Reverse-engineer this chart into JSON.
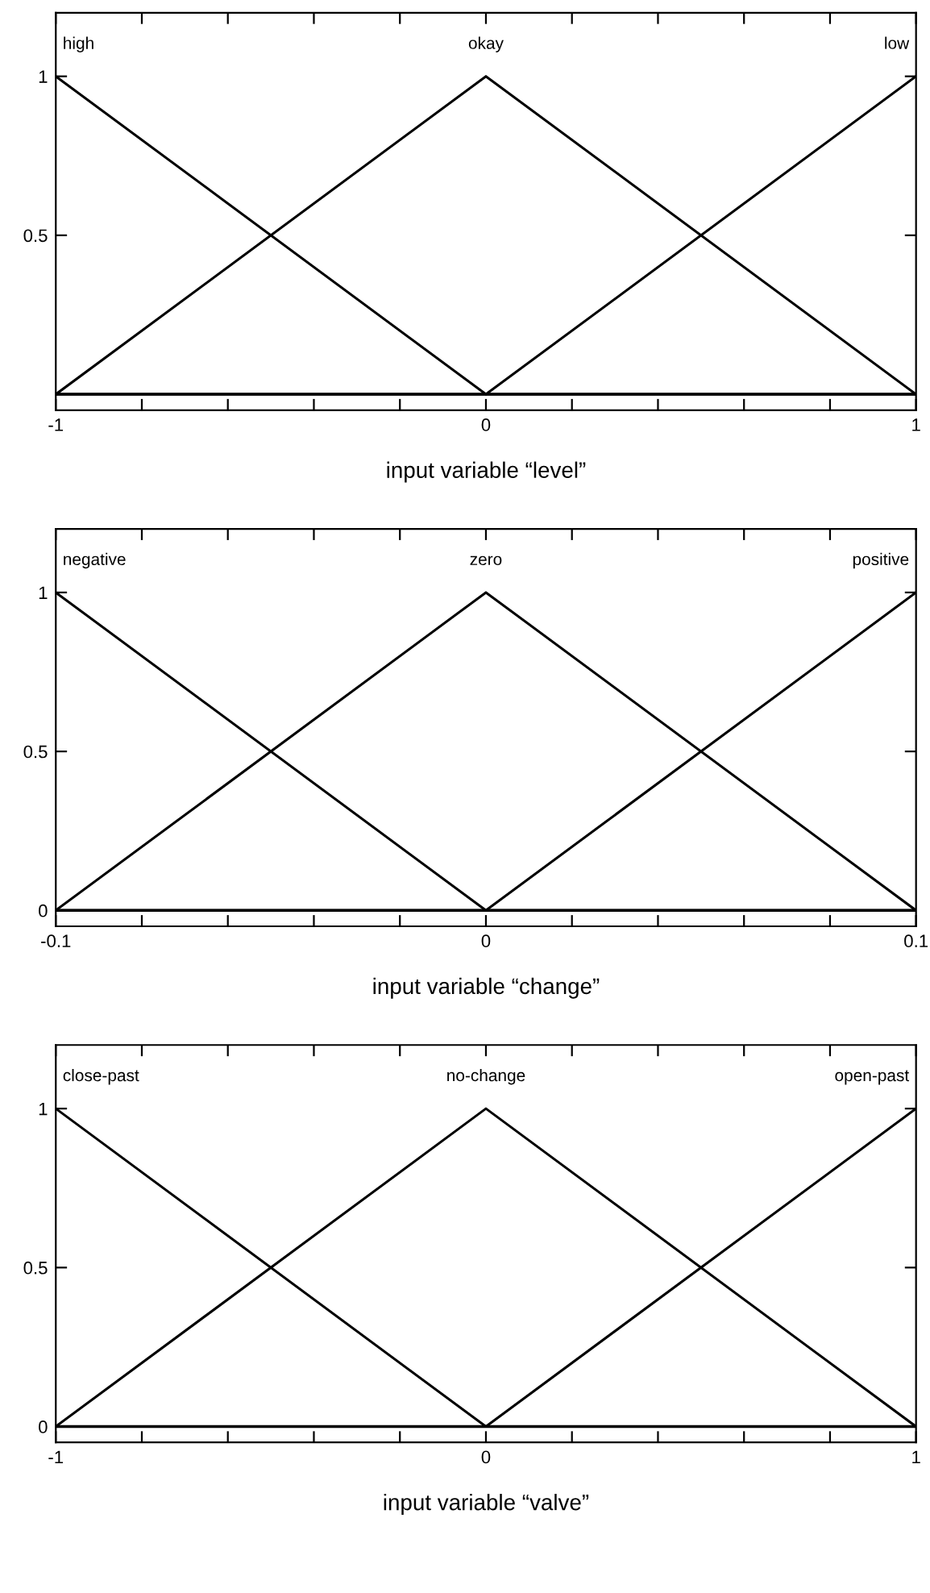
{
  "chart_data": [
    {
      "type": "line",
      "xlabel": "input variable “level”",
      "x": [
        -1,
        0,
        1
      ],
      "series": [
        {
          "name": "high",
          "color": "#000000",
          "values": [
            1,
            0,
            0
          ]
        },
        {
          "name": "okay",
          "color": "#000000",
          "values": [
            0,
            1,
            0
          ]
        },
        {
          "name": "low",
          "color": "#000000",
          "values": [
            0,
            0,
            1
          ]
        }
      ],
      "xlim": [
        -1,
        1
      ],
      "ylim": [
        -0.05,
        1.2
      ],
      "xticks": [
        -1,
        {
          "value": -0.8,
          "label": null
        },
        {
          "value": -0.6,
          "label": null
        },
        {
          "value": -0.4,
          "label": null
        },
        {
          "value": -0.2,
          "label": null
        },
        0,
        {
          "value": 0.2,
          "label": null
        },
        {
          "value": 0.4,
          "label": null
        },
        {
          "value": 0.6,
          "label": null
        },
        {
          "value": 0.8,
          "label": null
        },
        1
      ],
      "yticks": [
        0.5,
        1
      ],
      "ref_lines": [
        {
          "axis": "y",
          "value": 0
        }
      ],
      "grid": false,
      "legend": "top",
      "marker": "none",
      "line_style": "solid"
    },
    {
      "type": "line",
      "xlabel": "input variable “change”",
      "x": [
        -0.1,
        0,
        0.1
      ],
      "series": [
        {
          "name": "negative",
          "color": "#000000",
          "values": [
            1,
            0,
            0
          ]
        },
        {
          "name": "zero",
          "color": "#000000",
          "values": [
            0,
            1,
            0
          ]
        },
        {
          "name": "positive",
          "color": "#000000",
          "values": [
            0,
            0,
            1
          ]
        }
      ],
      "xlim": [
        -0.1,
        0.1
      ],
      "ylim": [
        -0.05,
        1.2
      ],
      "xticks": [
        -0.1,
        {
          "value": -0.08,
          "label": null
        },
        {
          "value": -0.06,
          "label": null
        },
        {
          "value": -0.04,
          "label": null
        },
        {
          "value": -0.02,
          "label": null
        },
        0,
        {
          "value": 0.02,
          "label": null
        },
        {
          "value": 0.04,
          "label": null
        },
        {
          "value": 0.06,
          "label": null
        },
        {
          "value": 0.08,
          "label": null
        },
        0.1
      ],
      "yticks": [
        0,
        0.5,
        1
      ],
      "ref_lines": [
        {
          "axis": "y",
          "value": 0
        }
      ],
      "grid": false,
      "legend": "top",
      "marker": "none",
      "line_style": "solid"
    },
    {
      "type": "line",
      "xlabel": "input variable “valve”",
      "x": [
        -1,
        0,
        1
      ],
      "series": [
        {
          "name": "close-past",
          "color": "#000000",
          "values": [
            1,
            0,
            0
          ]
        },
        {
          "name": "no-change",
          "color": "#000000",
          "values": [
            0,
            1,
            0
          ]
        },
        {
          "name": "open-past",
          "color": "#000000",
          "values": [
            0,
            0,
            1
          ]
        }
      ],
      "xlim": [
        -1,
        1
      ],
      "ylim": [
        -0.05,
        1.2
      ],
      "xticks": [
        -1,
        {
          "value": -0.8,
          "label": null
        },
        {
          "value": -0.6,
          "label": null
        },
        {
          "value": -0.4,
          "label": null
        },
        {
          "value": -0.2,
          "label": null
        },
        0,
        {
          "value": 0.2,
          "label": null
        },
        {
          "value": 0.4,
          "label": null
        },
        {
          "value": 0.6,
          "label": null
        },
        {
          "value": 0.8,
          "label": null
        },
        1
      ],
      "yticks": [
        0,
        0.5,
        1
      ],
      "ref_lines": [
        {
          "axis": "y",
          "value": 0
        }
      ],
      "grid": false,
      "legend": "top",
      "marker": "none",
      "line_style": "solid"
    }
  ]
}
